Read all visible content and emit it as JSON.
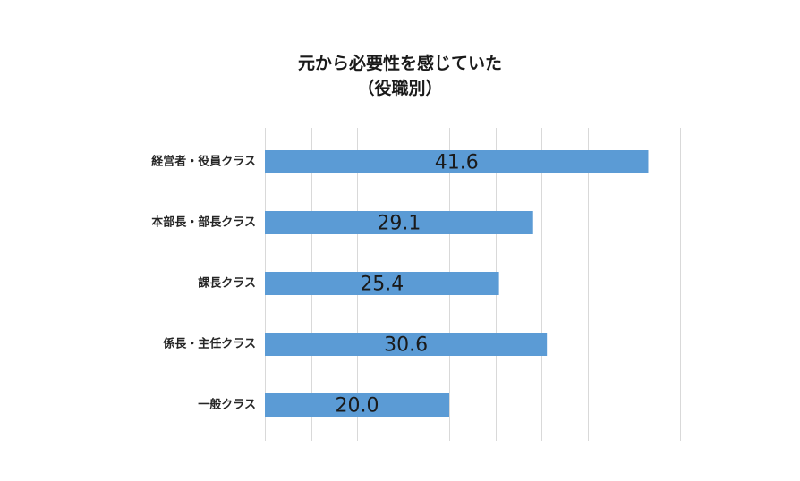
{
  "title_lines": [
    "元から必要性を感じていた",
    "（役職別）"
  ],
  "colors": {
    "bar": "#5b9bd5",
    "grid": "#d9d9d9",
    "text": "#1a1a1a"
  },
  "chart_data": {
    "type": "bar",
    "orientation": "horizontal",
    "title": "元から必要性を感じていた（役職別）",
    "categories": [
      "経営者・役員クラス",
      "本部長・部長クラス",
      "課長クラス",
      "係長・主任クラス",
      "一般クラス"
    ],
    "values": [
      41.6,
      29.1,
      25.4,
      30.6,
      20.0
    ],
    "value_labels": [
      "41.6",
      "29.1",
      "25.4",
      "30.6",
      "20.0"
    ],
    "xlim": [
      0,
      45
    ],
    "grid": true,
    "gridline_step": 5,
    "legend": "none",
    "data_labels": "centered-in-bar"
  }
}
